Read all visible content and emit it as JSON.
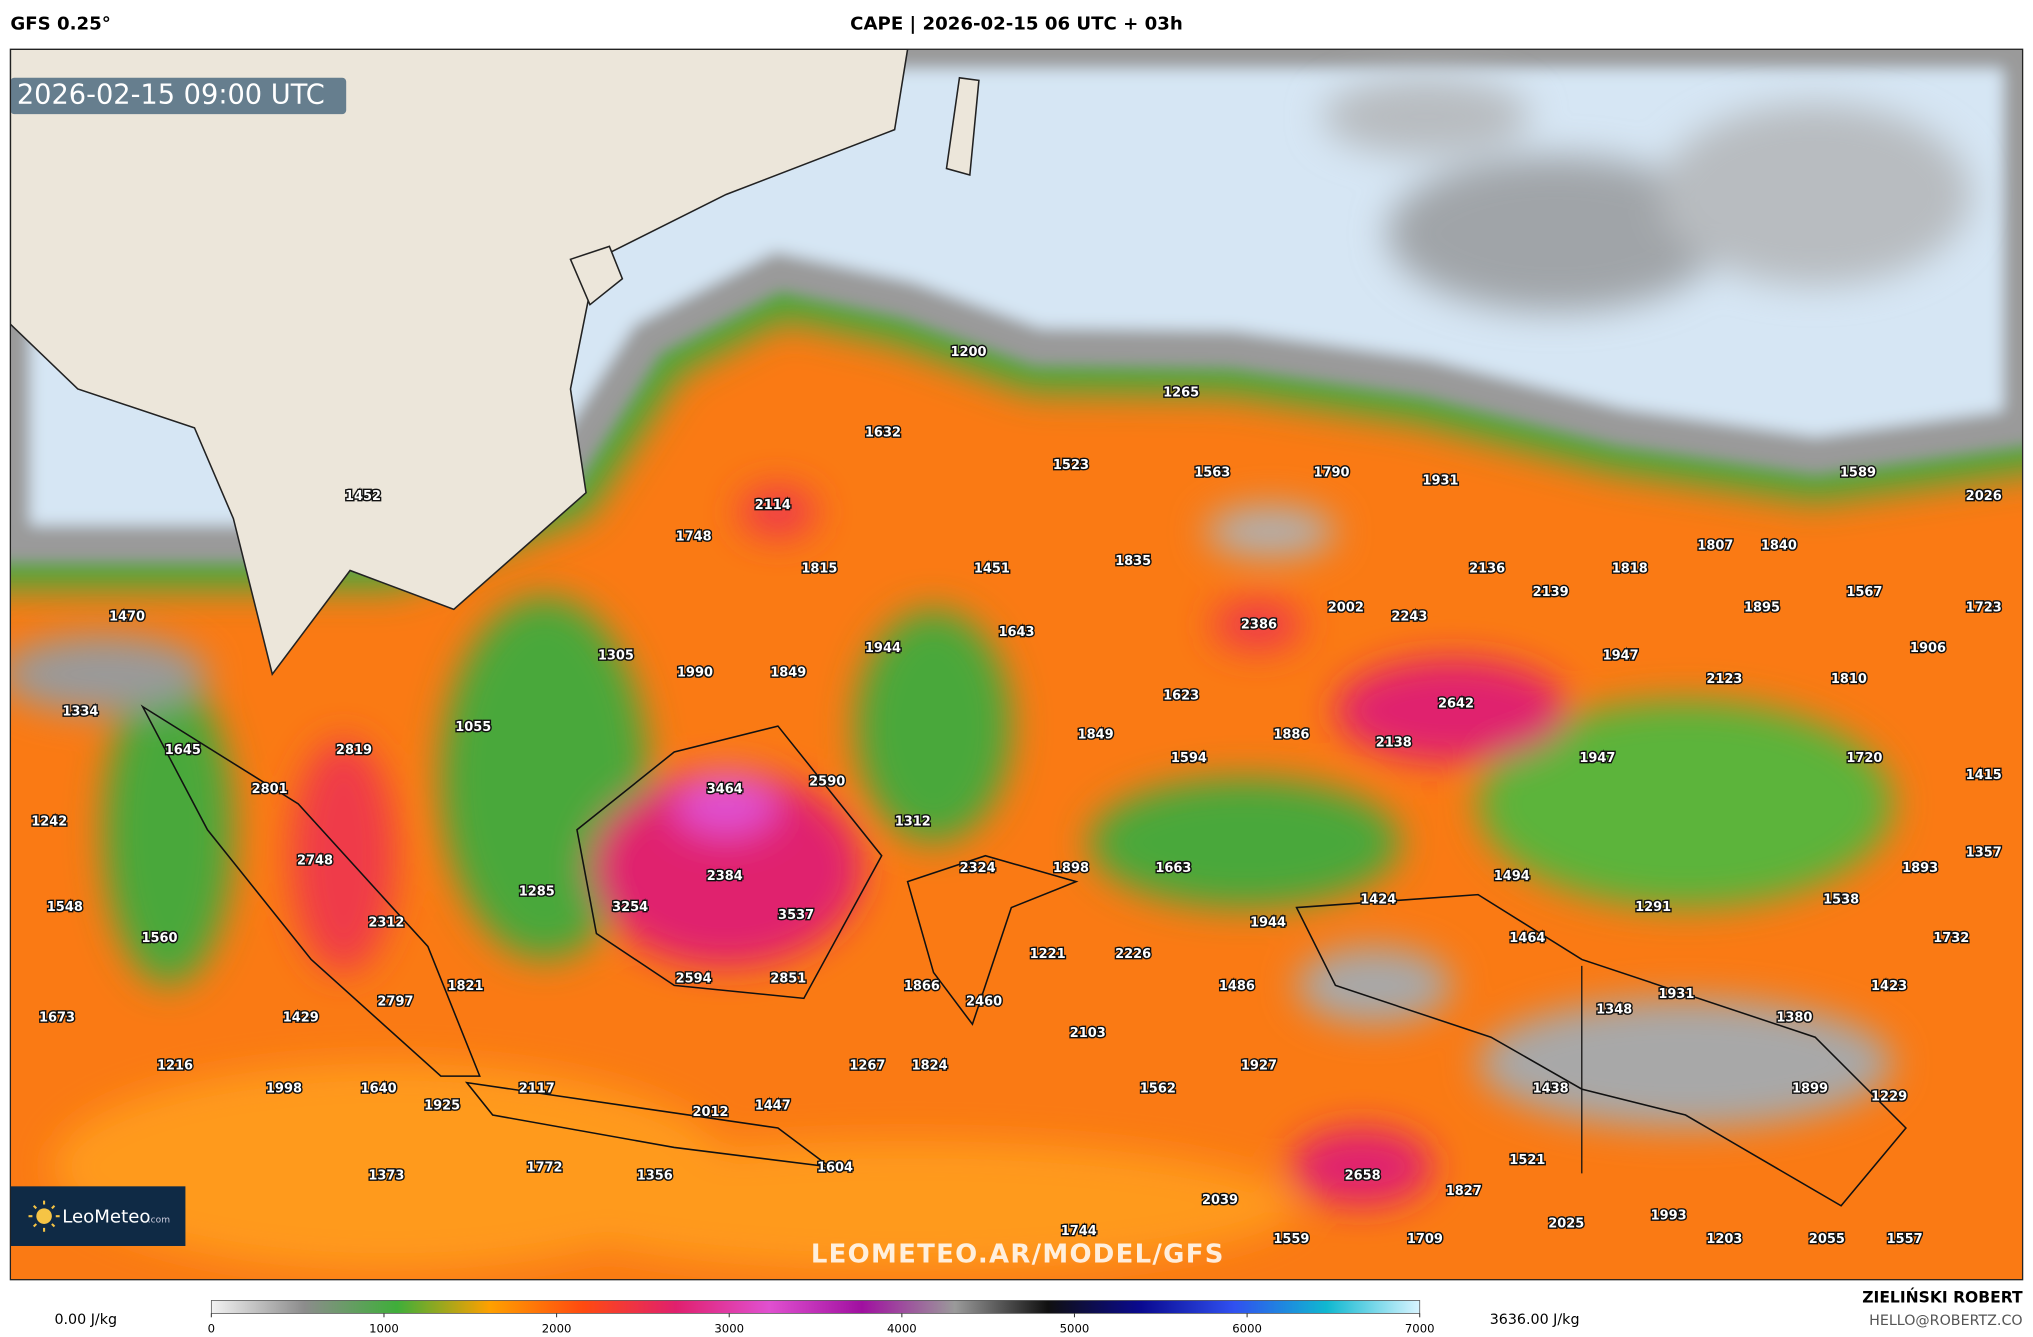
{
  "header": {
    "model": "GFS 0.25°",
    "title": "CAPE | 2026-02-15 06 UTC + 03h"
  },
  "map": {
    "valid_time": "2026-02-15 09:00 UTC",
    "watermark": "LEOMETEO.AR/MODEL/GFS",
    "logo": {
      "name": "LeoMeteo",
      "suffix": ".com"
    },
    "labels": [
      1200,
      1265,
      1632,
      1523,
      1563,
      1790,
      1931,
      1589,
      2026,
      1452,
      2114,
      1748,
      1815,
      1451,
      1835,
      2136,
      1818,
      1807,
      1840,
      2139,
      1567,
      1470,
      2386,
      2002,
      2243,
      1895,
      1723,
      1643,
      1944,
      1305,
      1990,
      1849,
      1947,
      1906,
      2123,
      1810,
      1623,
      2642,
      1334,
      1055,
      1645,
      2819,
      1849,
      1886,
      2138,
      1594,
      1947,
      1720,
      2801,
      3464,
      2590,
      1415,
      1242,
      1312,
      1357,
      2748,
      2384,
      2324,
      1898,
      1663,
      1494,
      1893,
      1548,
      1285,
      3254,
      3537,
      1424,
      1291,
      1538,
      1944,
      2312,
      1560,
      1464,
      1732,
      1221,
      2226,
      2594,
      2851,
      1821,
      1866,
      1486,
      2460,
      1931,
      1423,
      1348,
      1380,
      2797,
      1673,
      1429,
      2103,
      1216,
      1267,
      1824,
      1927,
      1998,
      1640,
      2117,
      1562,
      1438,
      1899,
      1229,
      1925,
      1447,
      2012,
      1772,
      1356,
      1373,
      1604,
      2658,
      1827,
      1521,
      2039,
      2025,
      1993,
      1744,
      1559,
      1709,
      1203,
      2055,
      1557
    ]
  },
  "colorbar": {
    "min_label": "0.00 J/kg",
    "max_label": "3636.00 J/kg",
    "lim": [
      0,
      7000
    ],
    "ticks": [
      0,
      1000,
      2000,
      3000,
      4000,
      5000,
      6000,
      7000
    ],
    "colors": [
      "#f2f2f2",
      "#8c8c8c",
      "#3fae3a",
      "#ffa000",
      "#ff4a10",
      "#e0206e",
      "#e050d0",
      "#a010a0",
      "#9a9a9a",
      "#101010",
      "#0a0a90",
      "#3050f0",
      "#10b8d0",
      "#d8f4ff"
    ]
  },
  "footer": {
    "author": "ZIELIŃSKI ROBERT",
    "email": "HELLO@ROBERTZ.CO"
  }
}
